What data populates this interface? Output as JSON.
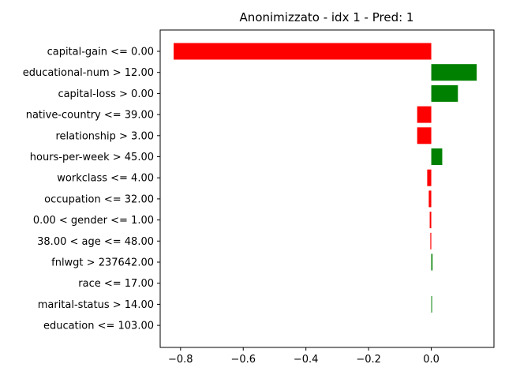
{
  "chart_data": {
    "type": "bar",
    "orientation": "horizontal",
    "title": "Anonimizzato - idx 1 - Pred: 1",
    "xlabel": "",
    "ylabel": "",
    "xlim": [
      -0.865,
      0.2
    ],
    "xticks": [
      {
        "value": -0.8,
        "label": "−0.8"
      },
      {
        "value": -0.6,
        "label": "−0.6"
      },
      {
        "value": -0.4,
        "label": "−0.4"
      },
      {
        "value": -0.2,
        "label": "−0.2"
      },
      {
        "value": 0.0,
        "label": "0.0"
      }
    ],
    "grid": false,
    "positive_color": "#008000",
    "negative_color": "#ff0000",
    "categories": [
      "capital-gain <= 0.00",
      "educational-num > 12.00",
      "capital-loss > 0.00",
      "native-country <= 39.00",
      "relationship > 3.00",
      "hours-per-week > 45.00",
      "workclass <= 4.00",
      "occupation <= 32.00",
      "0.00 < gender <= 1.00",
      "38.00 < age <= 48.00",
      "fnlwgt > 237642.00",
      "race <= 17.00",
      "marital-status > 14.00",
      "education <= 103.00"
    ],
    "values": [
      -0.822,
      0.145,
      0.085,
      -0.045,
      -0.045,
      0.035,
      -0.013,
      -0.008,
      -0.005,
      -0.003,
      0.004,
      0.0,
      0.002,
      0.0
    ]
  }
}
